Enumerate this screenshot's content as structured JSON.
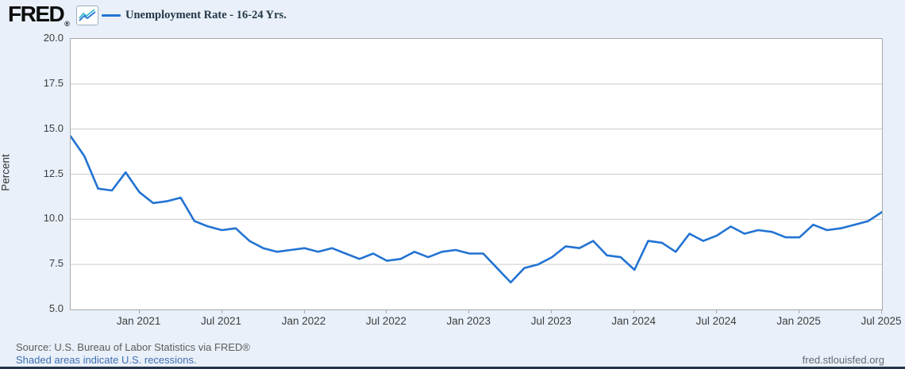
{
  "header": {
    "brand": "FRED",
    "registered_mark": "®",
    "legend_label": "Unemployment Rate - 16-24 Yrs."
  },
  "chart_data": {
    "type": "line",
    "title": "Unemployment Rate - 16-24 Yrs.",
    "xlabel": "",
    "ylabel": "Percent",
    "ylim": [
      5.0,
      20.0
    ],
    "grid": "horizontal",
    "legend_position": "top-left",
    "line_color": "#2273d2",
    "frequency": "monthly",
    "y_ticks": [
      "20.0",
      "17.5",
      "15.0",
      "12.5",
      "10.0",
      "7.5",
      "5.0"
    ],
    "y_tick_values": [
      20.0,
      17.5,
      15.0,
      12.5,
      10.0,
      7.5,
      5.0
    ],
    "x": [
      "Aug 2020",
      "Sep 2020",
      "Oct 2020",
      "Nov 2020",
      "Dec 2020",
      "Jan 2021",
      "Feb 2021",
      "Mar 2021",
      "Apr 2021",
      "May 2021",
      "Jun 2021",
      "Jul 2021",
      "Aug 2021",
      "Sep 2021",
      "Oct 2021",
      "Nov 2021",
      "Dec 2021",
      "Jan 2022",
      "Feb 2022",
      "Mar 2022",
      "Apr 2022",
      "May 2022",
      "Jun 2022",
      "Jul 2022",
      "Aug 2022",
      "Sep 2022",
      "Oct 2022",
      "Nov 2022",
      "Dec 2022",
      "Jan 2023",
      "Feb 2023",
      "Mar 2023",
      "Apr 2023",
      "May 2023",
      "Jun 2023",
      "Jul 2023",
      "Aug 2023",
      "Sep 2023",
      "Oct 2023",
      "Nov 2023",
      "Dec 2023",
      "Jan 2024",
      "Feb 2024",
      "Mar 2024",
      "Apr 2024",
      "May 2024",
      "Jun 2024",
      "Jul 2024",
      "Aug 2024",
      "Sep 2024",
      "Oct 2024",
      "Nov 2024",
      "Dec 2024",
      "Jan 2025",
      "Feb 2025",
      "Mar 2025",
      "Apr 2025",
      "May 2025",
      "Jun 2025",
      "Jul 2025"
    ],
    "values": [
      14.6,
      13.5,
      11.7,
      11.6,
      12.6,
      11.5,
      10.9,
      11.0,
      11.2,
      9.9,
      9.6,
      9.4,
      9.5,
      8.8,
      8.4,
      8.2,
      8.3,
      8.4,
      8.2,
      8.4,
      8.1,
      7.8,
      8.1,
      7.7,
      7.8,
      8.2,
      7.9,
      8.2,
      8.3,
      8.1,
      8.1,
      7.3,
      6.5,
      7.3,
      7.5,
      7.9,
      8.5,
      8.4,
      8.8,
      8.0,
      7.9,
      7.2,
      8.8,
      8.7,
      8.2,
      9.2,
      8.8,
      9.1,
      9.6,
      9.2,
      9.4,
      9.3,
      9.0,
      9.0,
      9.7,
      9.4,
      9.5,
      9.7,
      9.9,
      10.4
    ],
    "x_tick_labels": [
      {
        "label": "Jan 2021",
        "index": 5
      },
      {
        "label": "Jul 2021",
        "index": 11
      },
      {
        "label": "Jan 2022",
        "index": 17
      },
      {
        "label": "Jul 2022",
        "index": 23
      },
      {
        "label": "Jan 2023",
        "index": 29
      },
      {
        "label": "Jul 2023",
        "index": 35
      },
      {
        "label": "Jan 2024",
        "index": 41
      },
      {
        "label": "Jul 2024",
        "index": 47
      },
      {
        "label": "Jan 2025",
        "index": 53
      },
      {
        "label": "Jul 2025",
        "index": 59
      }
    ]
  },
  "footer": {
    "source": "Source: U.S. Bureau of Labor Statistics via FRED®",
    "recessions_link": "Shaded areas indicate U.S. recessions.",
    "site": "fred.stlouisfed.org"
  }
}
